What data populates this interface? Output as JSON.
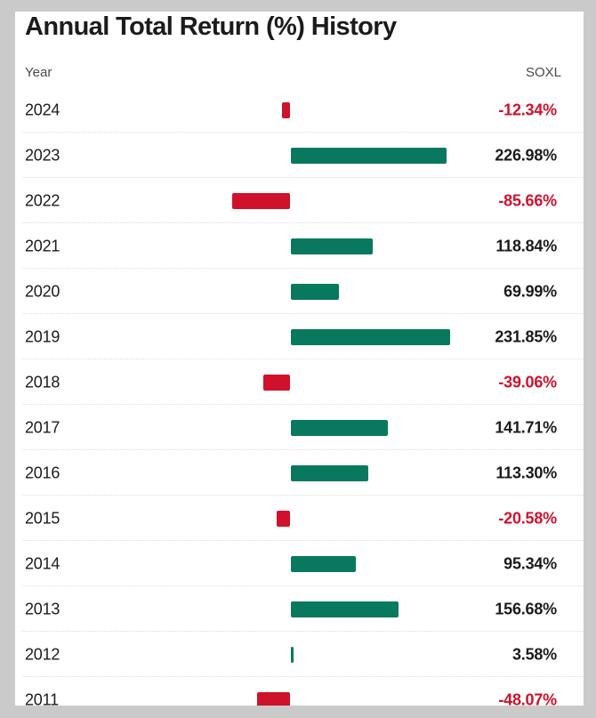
{
  "title": "Annual Total Return (%) History",
  "header": {
    "year_column": "Year",
    "series_column": "SOXL"
  },
  "colors": {
    "positive_bar": "#08795f",
    "negative_bar": "#d0112b",
    "positive_text": "#1b1b1b",
    "negative_text": "#d0112b",
    "page_background": "#cacaca",
    "card_background": "#ffffff"
  },
  "chart_data": {
    "type": "bar",
    "orientation": "horizontal",
    "title": "Annual Total Return (%) History",
    "series_name": "SOXL",
    "categories": [
      "2024",
      "2023",
      "2022",
      "2021",
      "2020",
      "2019",
      "2018",
      "2017",
      "2016",
      "2015",
      "2014",
      "2013",
      "2012",
      "2011"
    ],
    "values": [
      -12.34,
      226.98,
      -85.66,
      118.84,
      69.99,
      231.85,
      -39.06,
      141.71,
      113.3,
      -20.58,
      95.34,
      156.68,
      3.58,
      -48.07
    ],
    "value_labels": [
      "-12.34%",
      "226.98%",
      "-85.66%",
      "118.84%",
      "69.99%",
      "231.85%",
      "-39.06%",
      "141.71%",
      "113.30%",
      "-20.58%",
      "95.34%",
      "156.68%",
      "3.58%",
      "-48.07%"
    ],
    "baseline": 0,
    "grid": false,
    "legend": false
  }
}
